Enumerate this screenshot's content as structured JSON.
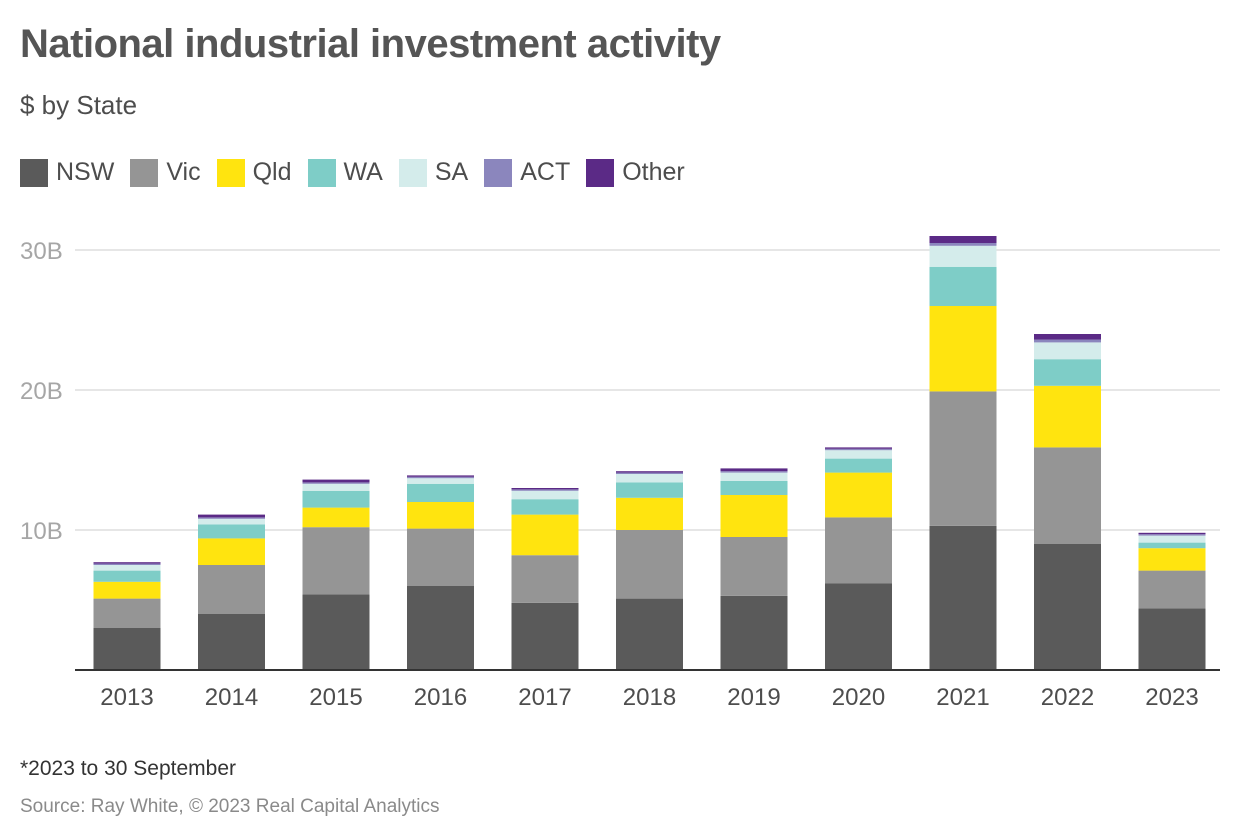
{
  "title": "National industrial investment activity",
  "subtitle": "$ by State",
  "footnote": "*2023 to 30 September",
  "source": "Source: Ray White, © 2023 Real Capital Analytics",
  "colors": {
    "NSW": "#5a5a5a",
    "Vic": "#959595",
    "Qld": "#ffe40f",
    "WA": "#7ecdc7",
    "SA": "#d4eceb",
    "ACT": "#8b86bd",
    "Other": "#5b2a86",
    "grid": "#dddddd",
    "axis": "#333333"
  },
  "chart_data": {
    "type": "bar",
    "stacked": true,
    "title": "National industrial investment activity",
    "subtitle": "$ by State",
    "categories": [
      "2013",
      "2014",
      "2015",
      "2016",
      "2017",
      "2018",
      "2019",
      "2020",
      "2021",
      "2022",
      "2023"
    ],
    "series": [
      {
        "name": "NSW",
        "values": [
          3.0,
          4.0,
          5.4,
          6.0,
          4.8,
          5.1,
          5.3,
          6.2,
          10.3,
          9.0,
          4.4
        ]
      },
      {
        "name": "Vic",
        "values": [
          2.1,
          3.5,
          4.8,
          4.1,
          3.4,
          4.9,
          4.2,
          4.7,
          9.6,
          6.9,
          2.7
        ]
      },
      {
        "name": "Qld",
        "values": [
          1.2,
          1.9,
          1.4,
          1.9,
          2.9,
          2.3,
          3.0,
          3.2,
          6.1,
          4.4,
          1.6
        ]
      },
      {
        "name": "WA",
        "values": [
          0.8,
          1.0,
          1.2,
          1.3,
          1.1,
          1.1,
          1.0,
          1.0,
          2.8,
          1.9,
          0.4
        ]
      },
      {
        "name": "SA",
        "values": [
          0.4,
          0.4,
          0.5,
          0.4,
          0.6,
          0.6,
          0.6,
          0.6,
          1.5,
          1.2,
          0.5
        ]
      },
      {
        "name": "ACT",
        "values": [
          0.1,
          0.1,
          0.1,
          0.1,
          0.1,
          0.1,
          0.1,
          0.1,
          0.2,
          0.2,
          0.1
        ]
      },
      {
        "name": "Other",
        "values": [
          0.1,
          0.2,
          0.2,
          0.1,
          0.1,
          0.1,
          0.2,
          0.1,
          0.5,
          0.4,
          0.1
        ]
      }
    ],
    "ylim": [
      0,
      30
    ],
    "yticks": [
      10,
      20,
      30
    ],
    "ytick_labels": [
      "10B",
      "20B",
      "30B"
    ],
    "xlabel": "",
    "ylabel": "",
    "grid": true,
    "legend_placement": "top-left"
  }
}
